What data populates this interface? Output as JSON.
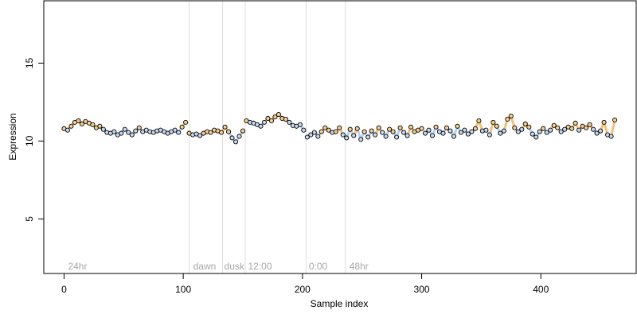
{
  "chart_data": {
    "type": "scatter",
    "title": "",
    "xlabel": "Sample index",
    "ylabel": "Expression",
    "xlim": [
      -17,
      480
    ],
    "ylim": [
      1.5,
      19
    ],
    "x_ticks": [
      0,
      100,
      200,
      300,
      400
    ],
    "y_ticks": [
      5,
      10,
      15
    ],
    "grid": false,
    "legend": "none",
    "colors": {
      "point_edge": "#000000",
      "orange": "#f4b561",
      "blue": "#aac8ea",
      "phase_line": "#dddddd",
      "phase_text": "#a6a6a6"
    },
    "phase_lines": [
      105,
      133,
      152,
      203,
      236
    ],
    "phase_labels": [
      {
        "x": 2,
        "text": "24hr"
      },
      {
        "x": 107,
        "text": "dawn"
      },
      {
        "x": 133,
        "text": "dusk"
      },
      {
        "x": 153,
        "text": "12:00"
      },
      {
        "x": 204,
        "text": "0:00"
      },
      {
        "x": 238,
        "text": "48hr"
      }
    ],
    "series": [
      {
        "x": [
          0,
          3,
          6,
          9,
          12,
          15,
          18,
          21,
          24,
          27,
          30,
          33,
          36,
          39,
          42,
          45,
          48,
          51,
          54,
          57,
          60,
          63,
          66,
          69,
          72,
          75,
          78,
          81,
          84,
          87,
          90,
          93,
          96,
          99,
          102
        ],
        "y": [
          10.8,
          10.7,
          10.95,
          11.2,
          11.3,
          11.1,
          11.25,
          11.15,
          11.05,
          10.85,
          10.95,
          10.75,
          10.55,
          10.5,
          10.6,
          10.4,
          10.5,
          10.75,
          10.55,
          10.4,
          10.65,
          10.85,
          10.6,
          10.7,
          10.6,
          10.55,
          10.65,
          10.7,
          10.6,
          10.5,
          10.6,
          10.7,
          10.55,
          10.9,
          11.2
        ]
      },
      {
        "x": [
          105,
          108,
          111,
          114,
          117,
          120,
          123,
          126,
          129,
          132,
          135,
          138,
          141,
          144,
          147,
          150
        ],
        "y": [
          10.5,
          10.4,
          10.45,
          10.35,
          10.5,
          10.6,
          10.55,
          10.7,
          10.65,
          10.55,
          10.9,
          10.6,
          10.2,
          9.95,
          10.3,
          10.65
        ]
      },
      {
        "x": [
          153,
          156,
          159,
          162,
          165,
          168,
          171,
          174,
          177,
          180,
          183,
          186,
          189,
          192,
          195,
          198,
          201
        ],
        "y": [
          11.3,
          11.2,
          11.15,
          11.05,
          10.95,
          11.2,
          11.45,
          11.3,
          11.55,
          11.7,
          11.45,
          11.4,
          11.2,
          11.0,
          10.95,
          11.05,
          10.7
        ]
      },
      {
        "x": [
          204,
          207,
          210,
          213,
          216,
          219,
          222,
          225,
          228,
          231,
          234,
          237,
          240,
          243,
          246,
          249,
          252,
          255,
          258,
          261,
          264,
          267,
          270,
          273,
          276,
          279,
          282,
          285,
          288,
          291,
          294,
          297,
          300
        ],
        "y": [
          10.25,
          10.4,
          10.55,
          10.3,
          10.6,
          10.85,
          10.7,
          10.55,
          10.6,
          10.85,
          10.4,
          10.2,
          10.75,
          10.35,
          10.8,
          10.1,
          10.6,
          10.25,
          10.65,
          10.4,
          10.85,
          10.55,
          10.3,
          10.75,
          10.6,
          10.25,
          10.85,
          10.55,
          10.35,
          10.9,
          10.6,
          10.7,
          10.8
        ]
      },
      {
        "x": [
          303,
          306,
          309,
          312,
          315,
          318,
          321,
          324,
          327,
          330,
          333,
          336,
          339,
          342,
          345,
          348,
          351,
          354,
          357,
          360,
          363,
          366,
          369,
          372,
          375,
          378,
          381,
          384,
          387,
          390,
          393,
          396,
          399,
          402,
          405,
          408,
          411,
          414,
          417,
          420,
          423,
          426,
          429,
          432,
          435,
          438,
          441,
          444,
          447,
          450,
          453,
          456,
          459,
          462
        ],
        "y": [
          10.5,
          10.7,
          10.35,
          10.9,
          10.6,
          10.5,
          10.85,
          10.65,
          10.3,
          10.95,
          10.55,
          10.7,
          10.45,
          10.6,
          10.8,
          11.3,
          10.65,
          10.7,
          10.4,
          11.2,
          10.95,
          10.5,
          10.65,
          11.4,
          11.6,
          10.85,
          10.6,
          10.75,
          11.1,
          10.9,
          10.45,
          10.25,
          10.6,
          10.8,
          10.55,
          10.7,
          11.0,
          10.85,
          10.6,
          10.75,
          10.9,
          10.8,
          11.15,
          10.7,
          10.95,
          10.85,
          11.05,
          10.75,
          10.5,
          10.65,
          11.2,
          10.4,
          10.3,
          11.35
        ]
      }
    ]
  }
}
